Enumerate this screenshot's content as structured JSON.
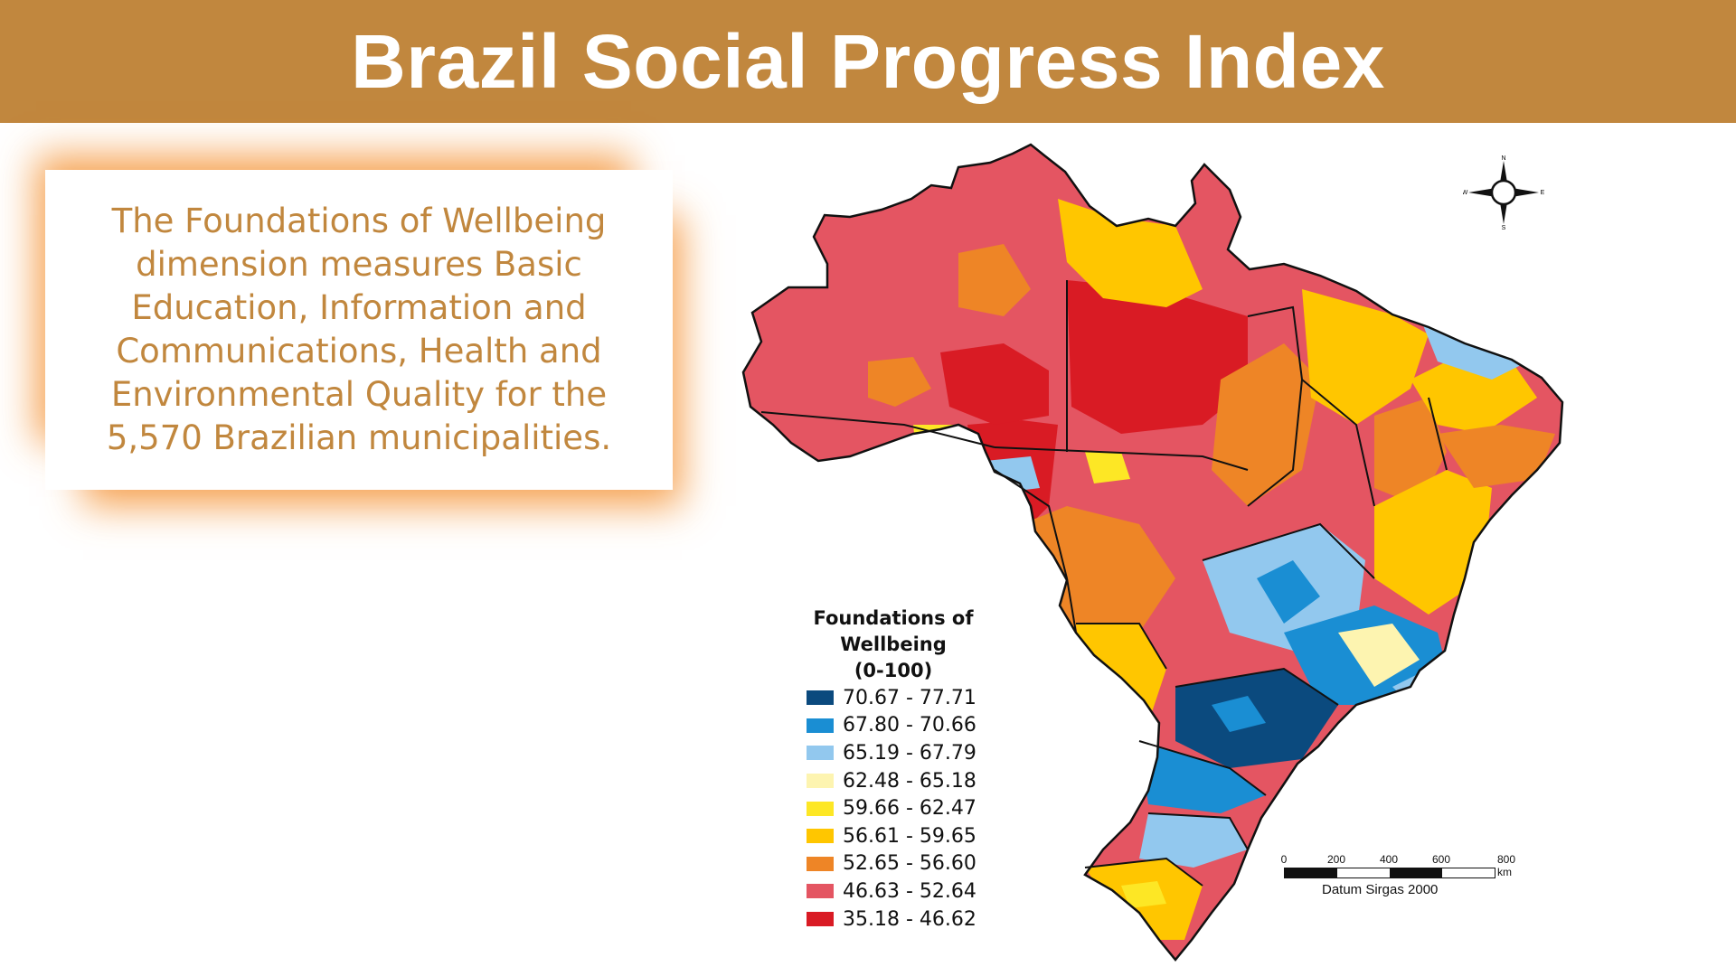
{
  "header": {
    "title": "Brazil Social Progress Index"
  },
  "info": {
    "text": "The Foundations of Wellbeing dimension measures Basic Education, Information and Communications, Health and Environmental Quality for the 5,570 Brazilian municipalities."
  },
  "legend": {
    "title_line1": "Foundations of Wellbeing",
    "title_line2": "(0-100)",
    "classes": [
      {
        "label": "70.67 - 77.71",
        "color": "#0B4A7E"
      },
      {
        "label": "67.80 - 70.66",
        "color": "#1A8ED3"
      },
      {
        "label": "65.19 - 67.79",
        "color": "#92C8EE"
      },
      {
        "label": "62.48 - 65.18",
        "color": "#FDF4B0"
      },
      {
        "label": "59.66 - 62.47",
        "color": "#FDE725"
      },
      {
        "label": "56.61 - 59.65",
        "color": "#FFC600"
      },
      {
        "label": "52.65 - 56.60",
        "color": "#EE8526"
      },
      {
        "label": "46.63 - 52.64",
        "color": "#E45562"
      },
      {
        "label": "35.18 - 46.62",
        "color": "#D91B24"
      }
    ]
  },
  "scale_bar": {
    "ticks": [
      "0",
      "200",
      "400",
      "600",
      "800 km"
    ],
    "datum": "Datum Sirgas 2000"
  },
  "compass": {
    "n": "N",
    "s": "S",
    "e": "E",
    "w": "W"
  },
  "colors": {
    "header_bg": "#C1873E",
    "text_accent": "#C1873E",
    "glow": "#F48C28"
  }
}
